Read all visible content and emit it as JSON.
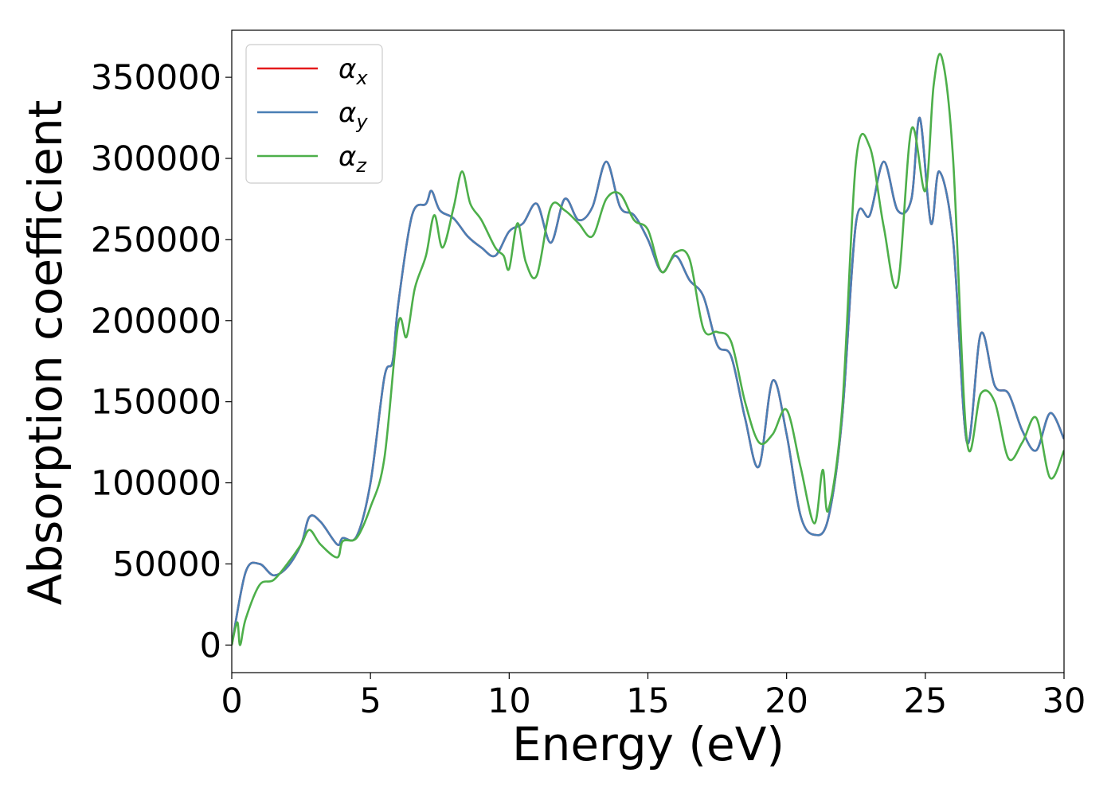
{
  "chart_data": {
    "type": "line",
    "xlabel": "Energy (eV)",
    "ylabel": "Absorption coefficient",
    "xlim": [
      0,
      30
    ],
    "ylim": [
      -17000,
      379000
    ],
    "x_ticks": [
      0,
      5,
      10,
      15,
      20,
      25,
      30
    ],
    "y_ticks": [
      0,
      50000,
      100000,
      150000,
      200000,
      250000,
      300000,
      350000
    ],
    "grid": false,
    "legend_position": "top-left",
    "series": [
      {
        "name": "α",
        "subscript": "x",
        "color": "#e41a1c",
        "x": [
          0,
          0.5,
          1.0,
          1.5,
          2.0,
          2.5,
          2.8,
          3.2,
          3.8,
          4.0,
          4.5,
          5.0,
          5.5,
          5.8,
          6.0,
          6.5,
          7.0,
          7.2,
          7.5,
          8.0,
          8.5,
          9.0,
          9.5,
          10.0,
          10.5,
          11.0,
          11.5,
          12.0,
          12.5,
          13.0,
          13.5,
          14.0,
          14.5,
          15.0,
          15.5,
          16.0,
          16.5,
          17.0,
          17.5,
          18.0,
          18.5,
          19.0,
          19.5,
          20.0,
          20.5,
          21.0,
          21.5,
          22.0,
          22.5,
          23.0,
          23.5,
          24.0,
          24.5,
          24.8,
          25.2,
          25.5,
          26.0,
          26.5,
          27.0,
          27.5,
          28.0,
          28.5,
          29.0,
          29.5,
          30.0
        ],
        "values": [
          0,
          45000,
          50000,
          43000,
          48000,
          62000,
          79000,
          76000,
          62000,
          66000,
          67000,
          100000,
          165000,
          175000,
          210000,
          265000,
          272000,
          280000,
          268000,
          263000,
          252000,
          245000,
          240000,
          255000,
          260000,
          272000,
          248000,
          275000,
          262000,
          270000,
          298000,
          270000,
          265000,
          250000,
          230000,
          240000,
          225000,
          215000,
          185000,
          178000,
          140000,
          110000,
          163000,
          130000,
          80000,
          68000,
          78000,
          140000,
          260000,
          265000,
          298000,
          268000,
          275000,
          325000,
          260000,
          292000,
          250000,
          125000,
          192000,
          160000,
          155000,
          132000,
          120000,
          143000,
          127000
        ]
      },
      {
        "name": "α",
        "subscript": "y",
        "color": "#4a7fb5",
        "x": [
          0,
          0.5,
          1.0,
          1.5,
          2.0,
          2.5,
          2.8,
          3.2,
          3.8,
          4.0,
          4.5,
          5.0,
          5.5,
          5.8,
          6.0,
          6.5,
          7.0,
          7.2,
          7.5,
          8.0,
          8.5,
          9.0,
          9.5,
          10.0,
          10.5,
          11.0,
          11.5,
          12.0,
          12.5,
          13.0,
          13.5,
          14.0,
          14.5,
          15.0,
          15.5,
          16.0,
          16.5,
          17.0,
          17.5,
          18.0,
          18.5,
          19.0,
          19.5,
          20.0,
          20.5,
          21.0,
          21.5,
          22.0,
          22.5,
          23.0,
          23.5,
          24.0,
          24.5,
          24.8,
          25.2,
          25.5,
          26.0,
          26.5,
          27.0,
          27.5,
          28.0,
          28.5,
          29.0,
          29.5,
          30.0
        ],
        "values": [
          0,
          45000,
          50000,
          43000,
          48000,
          62000,
          79000,
          76000,
          62000,
          66000,
          67000,
          100000,
          165000,
          175000,
          210000,
          265000,
          272000,
          280000,
          268000,
          263000,
          252000,
          245000,
          240000,
          255000,
          260000,
          272000,
          248000,
          275000,
          262000,
          270000,
          298000,
          270000,
          265000,
          250000,
          230000,
          240000,
          225000,
          215000,
          185000,
          178000,
          140000,
          110000,
          163000,
          130000,
          80000,
          68000,
          78000,
          140000,
          260000,
          265000,
          298000,
          268000,
          275000,
          325000,
          260000,
          292000,
          250000,
          125000,
          192000,
          160000,
          155000,
          132000,
          120000,
          143000,
          127000
        ]
      },
      {
        "name": "α",
        "subscript": "z",
        "color": "#4daf4a",
        "x": [
          0,
          0.2,
          0.3,
          0.5,
          1.0,
          1.5,
          2.0,
          2.5,
          2.8,
          3.2,
          3.8,
          4.0,
          4.5,
          5.0,
          5.5,
          6.0,
          6.3,
          6.6,
          7.0,
          7.3,
          7.6,
          8.0,
          8.3,
          8.6,
          9.0,
          9.5,
          9.8,
          10.0,
          10.3,
          10.6,
          11.0,
          11.5,
          12.0,
          12.5,
          13.0,
          13.5,
          14.0,
          14.5,
          15.0,
          15.5,
          16.0,
          16.5,
          17.0,
          17.5,
          18.0,
          18.5,
          19.0,
          19.5,
          20.0,
          20.5,
          21.0,
          21.3,
          21.5,
          22.0,
          22.5,
          23.0,
          23.5,
          24.0,
          24.5,
          25.0,
          25.3,
          25.6,
          26.0,
          26.5,
          27.0,
          27.5,
          28.0,
          28.5,
          29.0,
          29.5,
          30.0
        ],
        "values": [
          0,
          14000,
          0,
          16000,
          37000,
          40000,
          50000,
          62000,
          71000,
          62000,
          54000,
          64000,
          66000,
          85000,
          115000,
          198000,
          190000,
          220000,
          240000,
          265000,
          245000,
          270000,
          292000,
          272000,
          262000,
          245000,
          240000,
          232000,
          260000,
          236000,
          228000,
          270000,
          268000,
          260000,
          252000,
          275000,
          278000,
          262000,
          256000,
          230000,
          242000,
          238000,
          195000,
          193000,
          187000,
          150000,
          125000,
          130000,
          145000,
          110000,
          75000,
          108000,
          83000,
          145000,
          298000,
          307000,
          258000,
          222000,
          318000,
          280000,
          345000,
          362000,
          300000,
          126000,
          155000,
          150000,
          115000,
          125000,
          140000,
          103000,
          120000
        ]
      }
    ]
  }
}
